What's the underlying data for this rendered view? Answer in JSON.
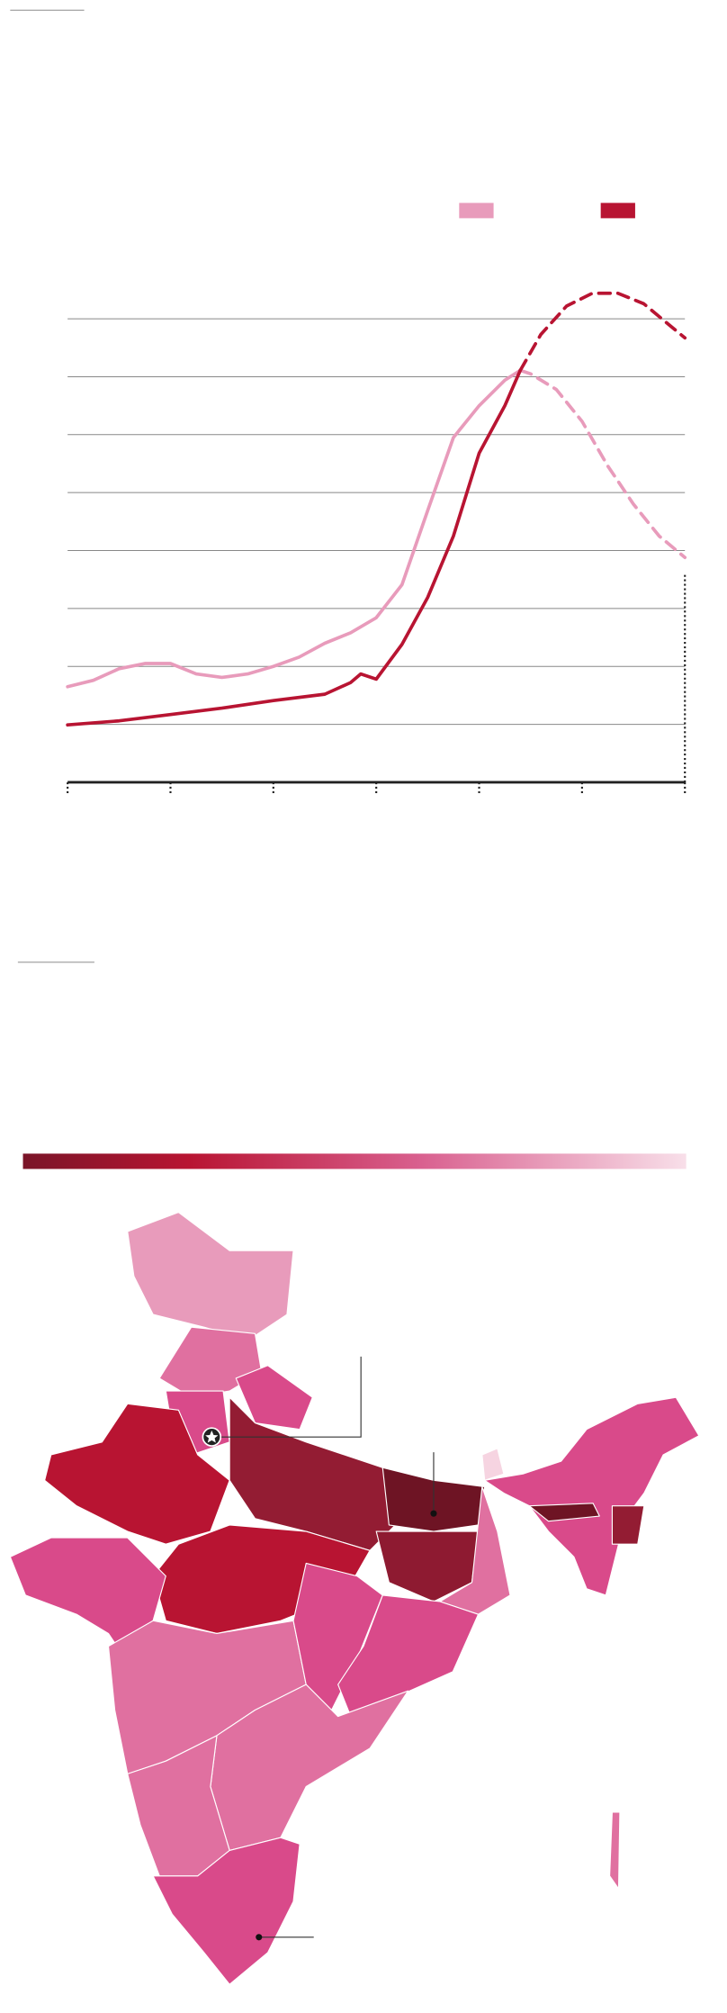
{
  "chart_data": {
    "type": "line",
    "xlim": [
      0,
      6
    ],
    "xticks": [
      0,
      1,
      2,
      3,
      4,
      5,
      6
    ],
    "ylim": [
      0,
      9
    ],
    "yticks": [
      0,
      1,
      2,
      3,
      4,
      5,
      6,
      7,
      8
    ],
    "grid": true,
    "series": [
      {
        "color": "#e89bbb",
        "dash": false,
        "x": [
          0,
          0.25,
          0.5,
          0.75,
          1,
          1.25,
          1.5,
          1.75,
          2,
          2.25,
          2.5,
          2.75,
          3,
          3.25,
          3.5,
          3.75,
          4,
          4.25,
          4.4
        ],
        "values": [
          1.65,
          1.76,
          1.96,
          2.05,
          2.05,
          1.87,
          1.81,
          1.87,
          2.0,
          2.16,
          2.4,
          2.58,
          2.84,
          3.41,
          4.69,
          5.95,
          6.5,
          6.94,
          7.11
        ]
      },
      {
        "color": "#e89bbb",
        "dash": true,
        "x": [
          4.4,
          4.5,
          4.75,
          5,
          5.25,
          5.5,
          5.75,
          6
        ],
        "values": [
          7.11,
          7.05,
          6.78,
          6.23,
          5.46,
          4.8,
          4.25,
          3.88
        ]
      },
      {
        "color": "#b81432",
        "dash": false,
        "x": [
          0,
          0.5,
          1,
          1.5,
          2,
          2.5,
          2.75,
          2.85,
          3,
          3.25,
          3.5,
          3.75,
          4,
          4.25,
          4.4
        ],
        "values": [
          0.99,
          1.06,
          1.17,
          1.28,
          1.41,
          1.52,
          1.72,
          1.87,
          1.78,
          2.38,
          3.19,
          4.25,
          5.68,
          6.5,
          7.11
        ]
      },
      {
        "color": "#b81432",
        "dash": true,
        "x": [
          4.4,
          4.6,
          4.85,
          5.1,
          5.35,
          5.6,
          5.85,
          6
        ],
        "values": [
          7.11,
          7.73,
          8.22,
          8.44,
          8.44,
          8.26,
          7.89,
          7.67
        ]
      }
    ]
  }
}
